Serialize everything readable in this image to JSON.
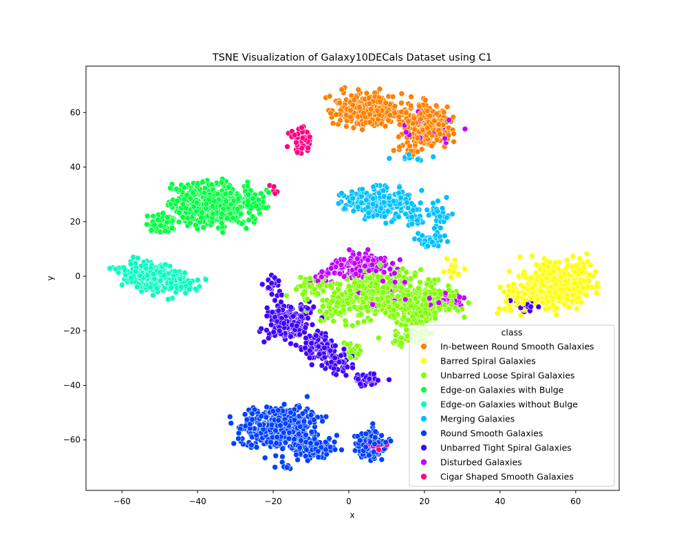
{
  "chart_data": {
    "type": "scatter",
    "title": "TSNE Visualization of Galaxy10DECals Dataset using C1",
    "xlabel": "x",
    "ylabel": "y",
    "xlim": [
      -69.5,
      71.5
    ],
    "ylim": [
      -78.5,
      77
    ],
    "xticks": [
      -60,
      -40,
      -20,
      0,
      20,
      40,
      60
    ],
    "yticks": [
      -60,
      -40,
      -20,
      0,
      20,
      40,
      60
    ],
    "legend": {
      "title": "class",
      "placement": "lower-right"
    },
    "series": [
      {
        "name": "In-between Round Smooth Galaxies",
        "color": "#ff8000",
        "clusters": [
          {
            "cx": 5,
            "cy": 61,
            "sx": 5.5,
            "sy": 4,
            "n": 320
          },
          {
            "cx": 20,
            "cy": 55,
            "sx": 4.5,
            "sy": 5,
            "n": 260
          },
          {
            "cx": 15,
            "cy": 46,
            "sx": 2.5,
            "sy": 1.5,
            "n": 10
          }
        ]
      },
      {
        "name": "Barred Spiral Galaxies",
        "color": "#ffff00",
        "clusters": [
          {
            "cx": 55,
            "cy": -3,
            "sx": 6.5,
            "sy": 5.5,
            "n": 320
          },
          {
            "cx": 44,
            "cy": -8,
            "sx": 3,
            "sy": 4,
            "n": 45
          },
          {
            "cx": 28,
            "cy": 3,
            "sx": 2.5,
            "sy": 3,
            "n": 15
          }
        ]
      },
      {
        "name": "Unbarred Loose Spiral Galaxies",
        "color": "#80ff00",
        "clusters": [
          {
            "cx": 7,
            "cy": -6,
            "sx": 6.5,
            "sy": 5.5,
            "n": 380
          },
          {
            "cx": 20,
            "cy": -10,
            "sx": 6,
            "sy": 5,
            "n": 220
          },
          {
            "cx": -3,
            "cy": -12,
            "sx": 3.5,
            "sy": 4,
            "n": 60
          },
          {
            "cx": -10,
            "cy": -4,
            "sx": 3.5,
            "sy": 3,
            "n": 50
          },
          {
            "cx": 17,
            "cy": -22,
            "sx": 4,
            "sy": 2.5,
            "n": 60
          },
          {
            "cx": 1,
            "cy": -28,
            "sx": 2,
            "sy": 3,
            "n": 18
          }
        ]
      },
      {
        "name": "Edge-on Galaxies with Bulge",
        "color": "#00ff40",
        "clusters": [
          {
            "cx": -36,
            "cy": 26,
            "sx": 7,
            "sy": 5,
            "n": 520
          },
          {
            "cx": -49,
            "cy": 19,
            "sx": 2.5,
            "sy": 2.5,
            "n": 70
          },
          {
            "cx": -25,
            "cy": 27,
            "sx": 2.5,
            "sy": 3,
            "n": 40
          }
        ]
      },
      {
        "name": "Edge-on Galaxies without Bulge",
        "color": "#00ffbf",
        "clusters": [
          {
            "cx": -52,
            "cy": 0,
            "sx": 4.5,
            "sy": 3.5,
            "n": 240
          },
          {
            "cx": -44,
            "cy": -3,
            "sx": 3,
            "sy": 3,
            "n": 40
          },
          {
            "cx": -59,
            "cy": 2,
            "sx": 2,
            "sy": 2,
            "n": 15
          }
        ]
      },
      {
        "name": "Merging Galaxies",
        "color": "#00bfff",
        "clusters": [
          {
            "cx": 8,
            "cy": 27,
            "sx": 6,
            "sy": 3.5,
            "n": 260
          },
          {
            "cx": 17,
            "cy": 21,
            "sx": 2,
            "sy": 2,
            "n": 30
          },
          {
            "cx": 24,
            "cy": 22,
            "sx": 2,
            "sy": 3,
            "n": 30
          },
          {
            "cx": 21,
            "cy": 13,
            "sx": 3,
            "sy": 2,
            "n": 35
          },
          {
            "cx": 17,
            "cy": 44,
            "sx": 3,
            "sy": 1,
            "n": 10
          }
        ]
      },
      {
        "name": "Round Smooth Galaxies",
        "color": "#0040ff",
        "clusters": [
          {
            "cx": -17,
            "cy": -56,
            "sx": 5.5,
            "sy": 5.5,
            "n": 430
          },
          {
            "cx": -9,
            "cy": -63,
            "sx": 4,
            "sy": 3,
            "n": 90
          },
          {
            "cx": -25,
            "cy": -55,
            "sx": 3,
            "sy": 4,
            "n": 60
          },
          {
            "cx": 6,
            "cy": -62,
            "sx": 3,
            "sy": 3.5,
            "n": 130
          },
          {
            "cx": -17,
            "cy": -70,
            "sx": 1.5,
            "sy": 0.8,
            "n": 8
          }
        ]
      },
      {
        "name": "Unbarred Tight Spiral Galaxies",
        "color": "#4000ff",
        "clusters": [
          {
            "cx": -16,
            "cy": -17,
            "sx": 4,
            "sy": 4.5,
            "n": 230
          },
          {
            "cx": -8,
            "cy": -26,
            "sx": 3,
            "sy": 3,
            "n": 100
          },
          {
            "cx": -3,
            "cy": -31,
            "sx": 2.5,
            "sy": 3,
            "n": 50
          },
          {
            "cx": 5,
            "cy": -38,
            "sx": 2.5,
            "sy": 1.5,
            "n": 35
          },
          {
            "cx": -20,
            "cy": -4,
            "sx": 2,
            "sy": 3,
            "n": 20
          },
          {
            "cx": 47,
            "cy": -10,
            "sx": 3,
            "sy": 3,
            "n": 15
          }
        ]
      },
      {
        "name": "Disturbed Galaxies",
        "color": "#bf00ff",
        "clusters": [
          {
            "cx": 3,
            "cy": 4,
            "sx": 5,
            "sy": 3,
            "n": 140
          },
          {
            "cx": 26,
            "cy": -9,
            "sx": 3,
            "sy": 2,
            "n": 40
          },
          {
            "cx": 10,
            "cy": -6,
            "sx": 4,
            "sy": 5,
            "n": 30
          },
          {
            "cx": 20,
            "cy": 55,
            "sx": 5,
            "sy": 5,
            "n": 18
          },
          {
            "cx": -7,
            "cy": 0,
            "sx": 2.5,
            "sy": 2,
            "n": 15
          }
        ]
      },
      {
        "name": "Cigar Shaped Smooth Galaxies",
        "color": "#ff0080",
        "clusters": [
          {
            "cx": -13,
            "cy": 50,
            "sx": 1.8,
            "sy": 3.5,
            "n": 60
          },
          {
            "cx": 7,
            "cy": -62,
            "sx": 2,
            "sy": 2,
            "n": 15
          },
          {
            "cx": -20,
            "cy": 31,
            "sx": 1.5,
            "sy": 1.5,
            "n": 5
          }
        ]
      }
    ]
  }
}
